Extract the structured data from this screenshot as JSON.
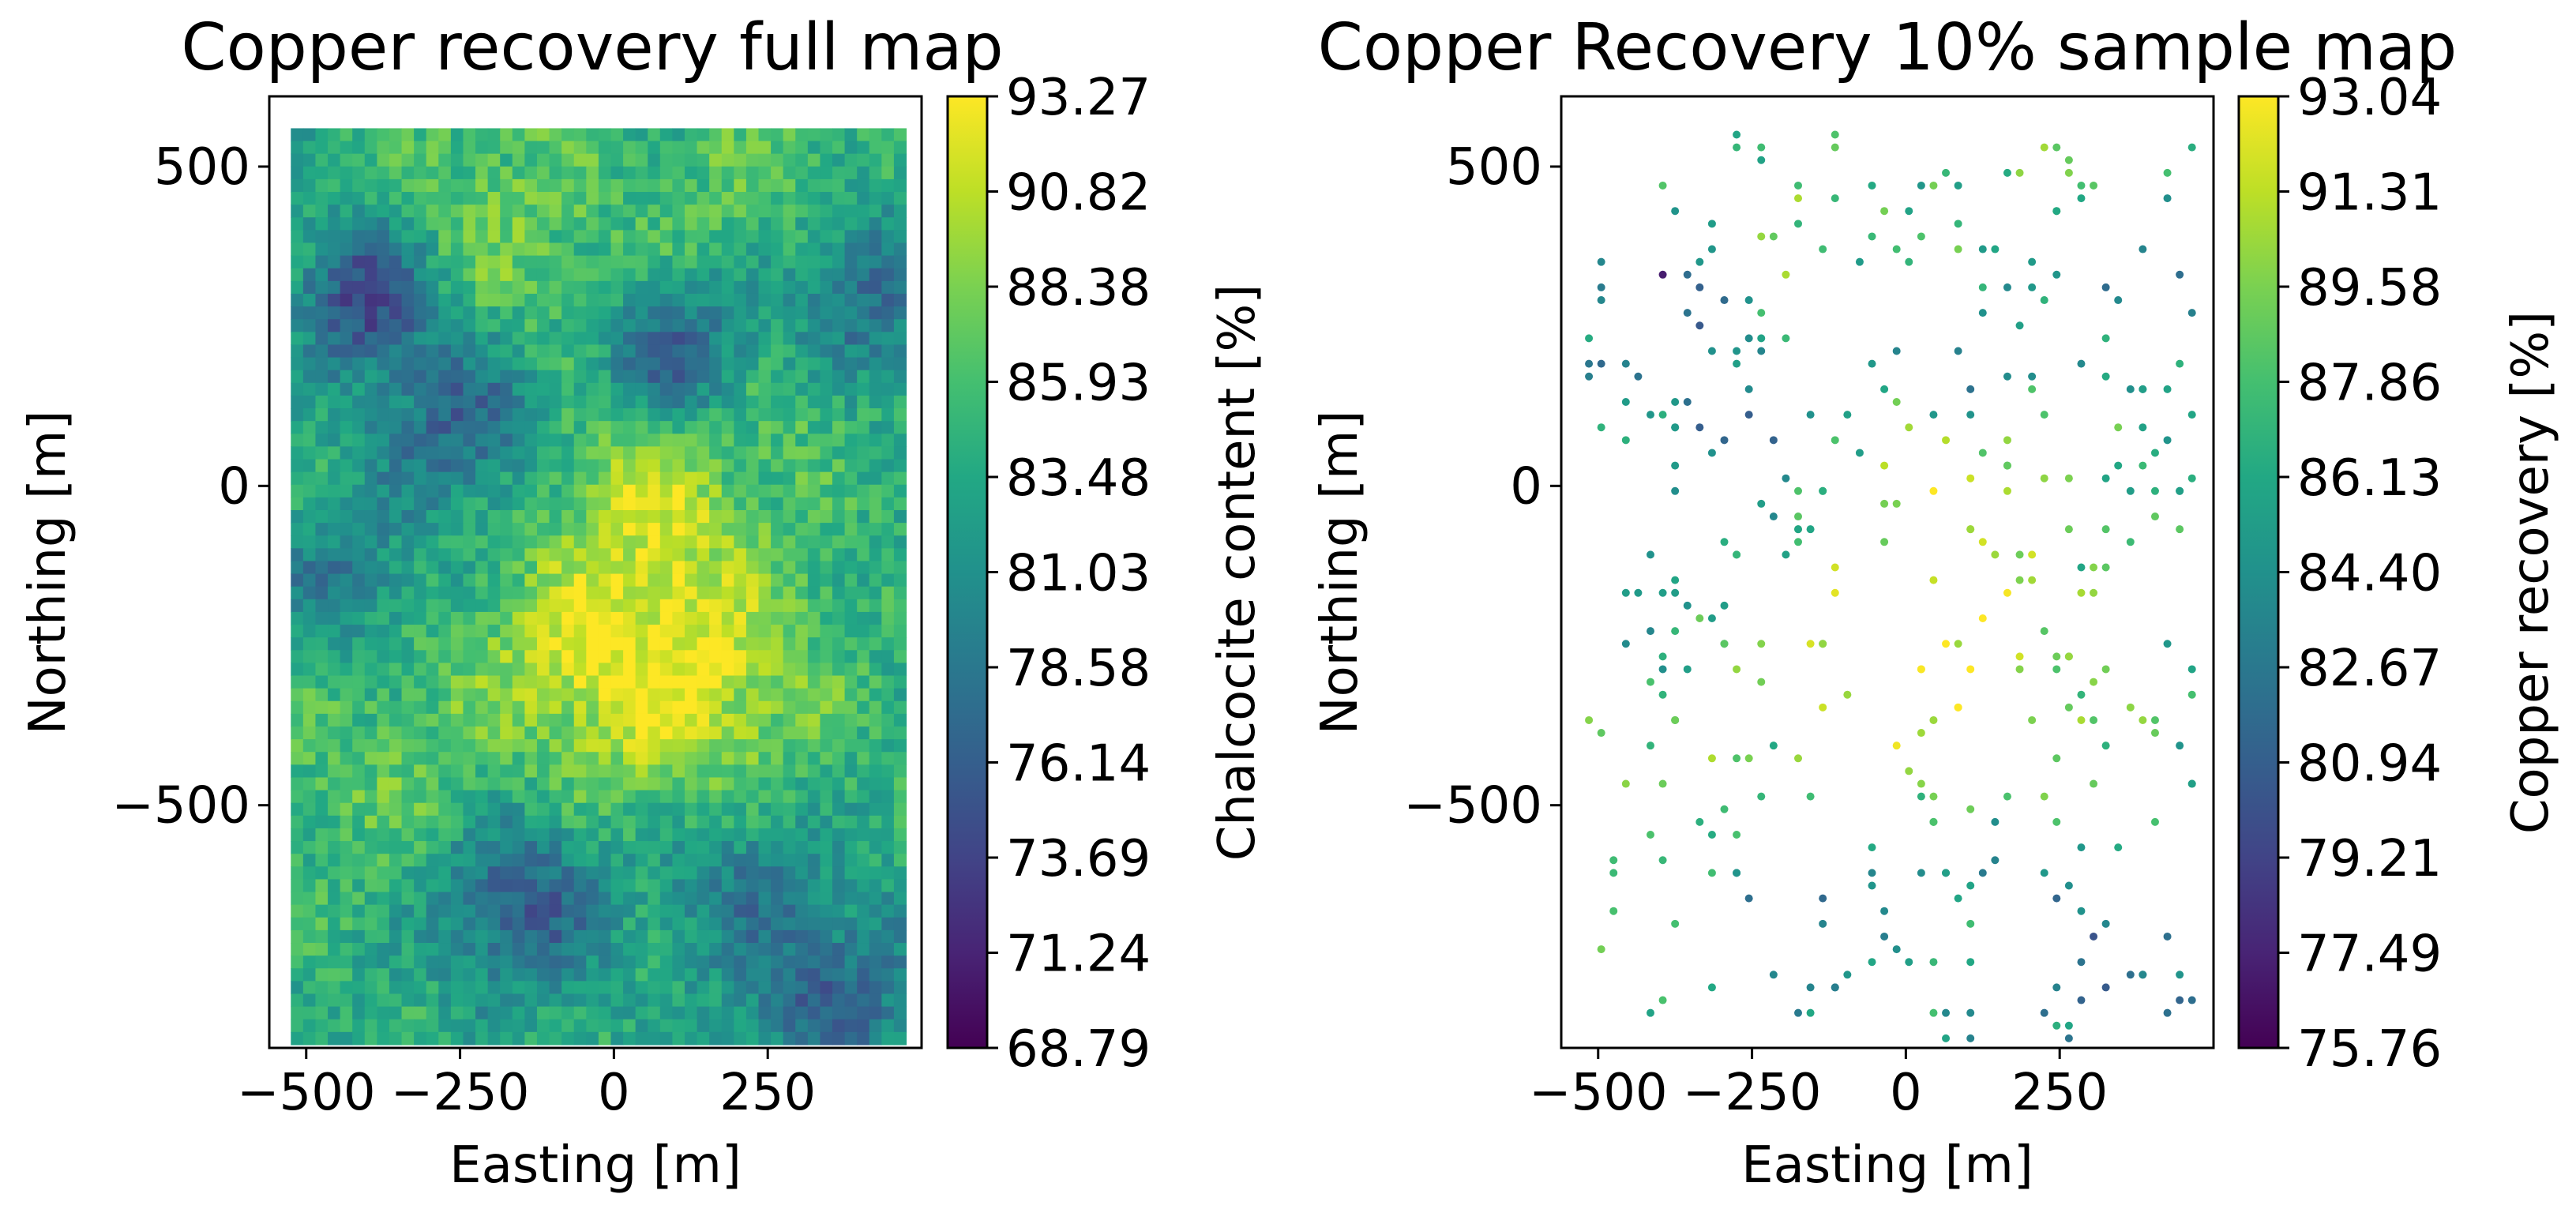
{
  "chart_data": [
    {
      "type": "heatmap",
      "title": "Copper recovery full map",
      "xlabel": "Easting [m]",
      "ylabel": "Northing [m]",
      "colorbar_label": "Chalcocite content [%]",
      "colormap": "viridis",
      "xlim": [
        -560,
        500
      ],
      "ylim": [
        -880,
        610
      ],
      "xticks": [
        -500,
        -250,
        0,
        250
      ],
      "xtick_labels": [
        "−500",
        "−250",
        "0",
        "250"
      ],
      "yticks": [
        500,
        0,
        -500
      ],
      "ytick_labels": [
        "500",
        "0",
        "−500"
      ],
      "grid": false,
      "value_range": [
        68.79,
        93.27
      ],
      "colorbar_ticks": [
        "93.27",
        "90.82",
        "88.38",
        "85.93",
        "83.48",
        "81.03",
        "78.58",
        "76.14",
        "73.69",
        "71.24",
        "68.79"
      ],
      "grid_extent": {
        "x": [
          -525,
          475
        ],
        "y": [
          -875,
          560
        ]
      },
      "grid_shape": {
        "cols": 50,
        "rows": 72
      },
      "pattern_note": "Spatially correlated field, mostly 84-92%, higher (yellow) zone around x 0..300, y -400..100; low patches near (-400,300), (100,200), (-150,-650)."
    },
    {
      "type": "scatter",
      "title": "Copper Recovery 10% sample map",
      "xlabel": "Easting [m]",
      "ylabel": "Northing [m]",
      "colorbar_label": "Copper recovery [%]",
      "colormap": "viridis",
      "xlim": [
        -560,
        500
      ],
      "ylim": [
        -880,
        610
      ],
      "xticks": [
        -500,
        -250,
        0,
        250
      ],
      "xtick_labels": [
        "−500",
        "−250",
        "0",
        "250"
      ],
      "yticks": [
        500,
        0,
        -500
      ],
      "ytick_labels": [
        "500",
        "0",
        "−500"
      ],
      "grid": false,
      "value_range": [
        75.76,
        93.04
      ],
      "colorbar_ticks": [
        "93.04",
        "91.31",
        "89.58",
        "87.86",
        "86.13",
        "84.40",
        "82.67",
        "80.94",
        "79.21",
        "77.49",
        "75.76"
      ],
      "sample_fraction": 0.1,
      "sample_count": 358
    }
  ]
}
